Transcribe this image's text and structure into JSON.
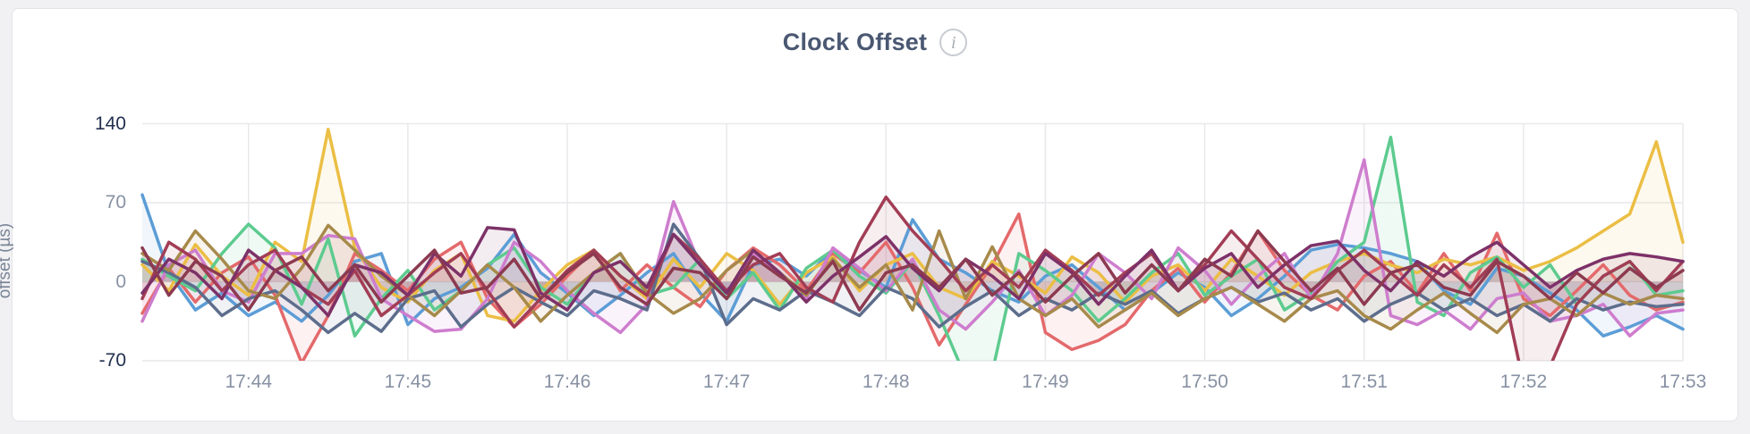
{
  "card": {
    "title": "Clock Offset"
  },
  "colors": {
    "page_bg": "#f1f1f3",
    "card_bg": "#ffffff",
    "card_border": "#e4e4e7",
    "title": "#4a5872",
    "tick_strong": "#22304f",
    "tick_muted": "#8791a3",
    "axis_label": "#7a8598",
    "grid": "#e9e9ec",
    "info_icon": "#a8adb6"
  },
  "chart_data": {
    "type": "line",
    "title": "Clock Offset",
    "xlabel": "",
    "ylabel": "offset (µs)",
    "ylim": [
      -70,
      140
    ],
    "grid": true,
    "legend_position": "none",
    "area_fill_opacity": 0.09,
    "line_width": 3.5,
    "x_start_time": "17:43:20",
    "x_step_seconds": 10,
    "y_ticks": [
      {
        "value": 140,
        "label": "140",
        "strong": true
      },
      {
        "value": 70,
        "label": "70",
        "strong": false
      },
      {
        "value": 0,
        "label": "0",
        "strong": false
      },
      {
        "value": -70,
        "label": "-70",
        "strong": true
      }
    ],
    "x_ticks": [
      {
        "index": 4,
        "label": "17:44"
      },
      {
        "index": 10,
        "label": "17:45"
      },
      {
        "index": 16,
        "label": "17:46"
      },
      {
        "index": 22,
        "label": "17:47"
      },
      {
        "index": 28,
        "label": "17:48"
      },
      {
        "index": 34,
        "label": "17:49"
      },
      {
        "index": 40,
        "label": "17:50"
      },
      {
        "index": 46,
        "label": "17:51"
      },
      {
        "index": 52,
        "label": "17:52"
      },
      {
        "index": 58,
        "label": "17:53"
      }
    ],
    "series": [
      {
        "name": "series-blue",
        "color": "#5C9DD6",
        "values": [
          77,
          8,
          -25,
          -10,
          -30,
          -18,
          -35,
          -12,
          18,
          25,
          -38,
          -15,
          -5,
          12,
          42,
          8,
          -10,
          -30,
          -12,
          8,
          25,
          -10,
          -35,
          15,
          20,
          5,
          28,
          10,
          -5,
          55,
          20,
          8,
          -8,
          -18,
          5,
          15,
          -5,
          -25,
          -10,
          8,
          -5,
          -30,
          -15,
          5,
          28,
          33,
          30,
          25,
          18,
          -8,
          -20,
          12,
          5,
          -10,
          -25,
          -48,
          -40,
          -30,
          -42
        ]
      },
      {
        "name": "series-salmon",
        "color": "#E4696B",
        "values": [
          -28,
          12,
          -18,
          8,
          22,
          -12,
          -72,
          -30,
          25,
          10,
          -8,
          20,
          35,
          -15,
          -40,
          -20,
          5,
          28,
          -8,
          15,
          -5,
          -22,
          10,
          30,
          15,
          -8,
          25,
          8,
          35,
          -5,
          -56,
          -20,
          15,
          60,
          -45,
          -60,
          -52,
          -38,
          -8,
          12,
          -18,
          8,
          45,
          10,
          -12,
          -25,
          5,
          18,
          -10,
          25,
          -8,
          43,
          -15,
          -30,
          -8,
          15,
          -12,
          -25,
          -18
        ]
      },
      {
        "name": "series-gold",
        "color": "#EBBE44",
        "values": [
          15,
          -8,
          33,
          5,
          -12,
          35,
          18,
          135,
          30,
          -5,
          -18,
          10,
          25,
          -30,
          -35,
          -8,
          15,
          28,
          5,
          -15,
          20,
          -5,
          25,
          10,
          -20,
          8,
          22,
          -8,
          15,
          25,
          -5,
          -15,
          18,
          5,
          -10,
          22,
          8,
          -18,
          5,
          15,
          -8,
          20,
          5,
          -12,
          8,
          18,
          25,
          15,
          8,
          20,
          15,
          22,
          10,
          18,
          30,
          45,
          60,
          124,
          35
        ]
      },
      {
        "name": "series-green",
        "color": "#5DCB8F",
        "values": [
          20,
          5,
          -8,
          25,
          51,
          30,
          -20,
          38,
          -48,
          -15,
          10,
          -25,
          -8,
          15,
          30,
          -5,
          -20,
          8,
          25,
          -12,
          -5,
          20,
          -15,
          8,
          -25,
          12,
          28,
          5,
          -10,
          18,
          -30,
          -85,
          -80,
          25,
          10,
          -8,
          -35,
          -15,
          8,
          25,
          -12,
          5,
          20,
          -25,
          -10,
          18,
          35,
          128,
          -18,
          -30,
          8,
          22,
          -5,
          15,
          -20,
          5,
          18,
          -12,
          -8
        ]
      },
      {
        "name": "series-orchid",
        "color": "#CE7DCE",
        "values": [
          -35,
          15,
          28,
          -8,
          -18,
          25,
          25,
          41,
          38,
          -15,
          -30,
          -44,
          -42,
          -15,
          35,
          18,
          -8,
          -28,
          -45,
          -20,
          71,
          15,
          -10,
          25,
          8,
          -15,
          30,
          12,
          -8,
          20,
          -25,
          -42,
          -18,
          10,
          -30,
          -12,
          25,
          8,
          -15,
          30,
          10,
          -20,
          5,
          25,
          -15,
          25,
          108,
          -30,
          -38,
          -25,
          -42,
          -15,
          -10,
          -35,
          -30,
          -20,
          -48,
          -28,
          -25
        ]
      },
      {
        "name": "series-slate",
        "color": "#5D6D8C",
        "values": [
          18,
          8,
          -5,
          -30,
          -15,
          -8,
          -25,
          -45,
          -28,
          -44,
          -15,
          -8,
          -40,
          -20,
          -5,
          -18,
          -30,
          -8,
          -15,
          -25,
          51,
          20,
          -38,
          -15,
          -25,
          -8,
          -18,
          -30,
          -5,
          -15,
          -40,
          -22,
          -8,
          -30,
          -15,
          -25,
          -10,
          -20,
          -8,
          -28,
          -15,
          -5,
          -18,
          -10,
          -25,
          -15,
          -35,
          -20,
          -10,
          -25,
          -15,
          -30,
          -20,
          -35,
          -15,
          -25,
          -18,
          -22,
          -20
        ]
      },
      {
        "name": "series-khaki",
        "color": "#A78A4B",
        "values": [
          25,
          10,
          45,
          20,
          -8,
          -15,
          12,
          50,
          28,
          5,
          -12,
          -30,
          -8,
          15,
          -5,
          -35,
          -12,
          8,
          25,
          -10,
          -28,
          -15,
          10,
          28,
          8,
          -12,
          20,
          -5,
          15,
          -25,
          45,
          -15,
          31,
          -15,
          -30,
          -15,
          -40,
          -25,
          -10,
          -30,
          -15,
          -5,
          -20,
          -35,
          -15,
          -8,
          -30,
          -42,
          -25,
          -10,
          -28,
          -45,
          -20,
          -15,
          -30,
          -10,
          -20,
          -12,
          -15
        ]
      },
      {
        "name": "series-wine",
        "color": "#A23D55",
        "values": [
          -15,
          35,
          20,
          -8,
          15,
          28,
          -5,
          -20,
          10,
          -30,
          -12,
          8,
          25,
          -8,
          -40,
          -15,
          10,
          28,
          5,
          -12,
          42,
          20,
          -8,
          15,
          25,
          -5,
          -18,
          35,
          75,
          45,
          20,
          -8,
          15,
          -5,
          28,
          10,
          -12,
          8,
          25,
          -8,
          15,
          45,
          20,
          -5,
          -15,
          10,
          28,
          8,
          -12,
          15,
          -5,
          20,
          -90,
          -75,
          -20,
          5,
          18,
          -8,
          18
        ]
      },
      {
        "name": "series-plum",
        "color": "#7D3168",
        "values": [
          -10,
          20,
          8,
          -15,
          28,
          10,
          -5,
          -30,
          15,
          8,
          -12,
          25,
          5,
          48,
          46,
          -10,
          -25,
          8,
          18,
          -5,
          42,
          15,
          -10,
          28,
          8,
          -18,
          5,
          22,
          40,
          12,
          -8,
          20,
          5,
          -15,
          25,
          8,
          -20,
          5,
          28,
          -8,
          12,
          25,
          -5,
          15,
          32,
          36,
          10,
          -8,
          18,
          5,
          22,
          35,
          15,
          -5,
          10,
          20,
          25,
          22,
          18
        ]
      },
      {
        "name": "series-maroon",
        "color": "#8C3A50",
        "values": [
          30,
          -12,
          18,
          5,
          -25,
          10,
          22,
          -8,
          15,
          -18,
          5,
          28,
          -10,
          -5,
          20,
          -15,
          8,
          25,
          -5,
          -20,
          12,
          8,
          -15,
          22,
          5,
          -10,
          18,
          -25,
          8,
          15,
          -5,
          20,
          -12,
          8,
          -18,
          5,
          25,
          -10,
          15,
          -8,
          20,
          5,
          45,
          18,
          -8,
          12,
          -20,
          8,
          15,
          -5,
          -12,
          18,
          5,
          -15,
          8,
          -10,
          12,
          -5,
          10
        ]
      }
    ]
  }
}
